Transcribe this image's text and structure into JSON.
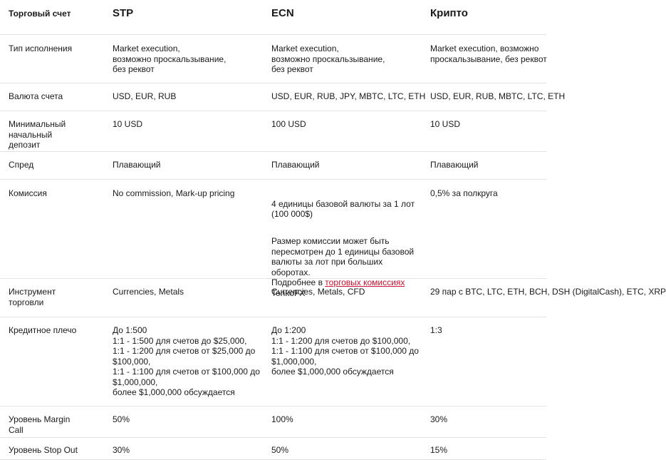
{
  "header": {
    "account": "Торговый счет",
    "stp": "STP",
    "ecn": "ECN",
    "crypto": "Крипто"
  },
  "rows": [
    {
      "label": "Тип исполнения",
      "stp": "Market execution,\nвозможно проскальзывание,\nбез реквот",
      "ecn": "Market execution,\nвозможно проскальзывание,\nбез реквот",
      "crypto": "Market execution, возможно\nпроскальзывание, без реквот"
    },
    {
      "label": "Валюта счета",
      "stp": "USD, EUR, RUB",
      "ecn": "USD, EUR, RUB, JPY, MBTC, LTC, ETH",
      "crypto": "USD, EUR, RUB, MBTC, LTC, ETH"
    },
    {
      "label": "Минимальный\nначальный\nдепозит",
      "stp": "10 USD",
      "ecn": "100 USD",
      "crypto": "10 USD"
    },
    {
      "label": "Спред",
      "stp": "Плавающий",
      "ecn": "Плавающий",
      "crypto": "Плавающий"
    },
    {
      "label": "Комиссия",
      "stp": "No commission, Mark-up pricing",
      "ecn_p1": "4 единицы базовой валюты за 1 лот\n(100 000$)",
      "ecn_p2": "Размер комиссии может быть\nпересмотрен до 1 единицы базовой\nвалюты за лот при больших оборотах.\nПодробнее в ",
      "ecn_link": "торговых комиссиях",
      "ecn_p2_end": "\nTenkoFX",
      "crypto": "0,5% за полкруга"
    },
    {
      "label": "Инструмент\nторговли",
      "stp": "Currencies, Metals",
      "ecn": "Currencies, Metals, CFD",
      "crypto": "29 пар с BTC, LTC, ETH, BCH, DSH\n(DigitalCash), ETC, XRP"
    },
    {
      "label": "Кредитное плечо",
      "stp": "До 1:500\n1:1 - 1:500 для счетов до $25,000,\n1:1 - 1:200 для счетов от $25,000 до\n$100,000,\n1:1 - 1:100 для счетов от $100,000 до\n$1,000,000,\nболее $1,000,000 обсуждается",
      "ecn": "До 1:200\n1:1 - 1:200 для счетов до $100,000,\n1:1 - 1:100 для счетов от $100,000 до\n$1,000,000,\nболее $1,000,000 обсуждается",
      "crypto": "1:3"
    },
    {
      "label": "Уровень Margin\nCall",
      "stp": "50%",
      "ecn": "100%",
      "crypto": "30%"
    },
    {
      "label": "Уровень Stop Out",
      "stp": "30%",
      "ecn": "50%",
      "crypto": "15%"
    }
  ]
}
